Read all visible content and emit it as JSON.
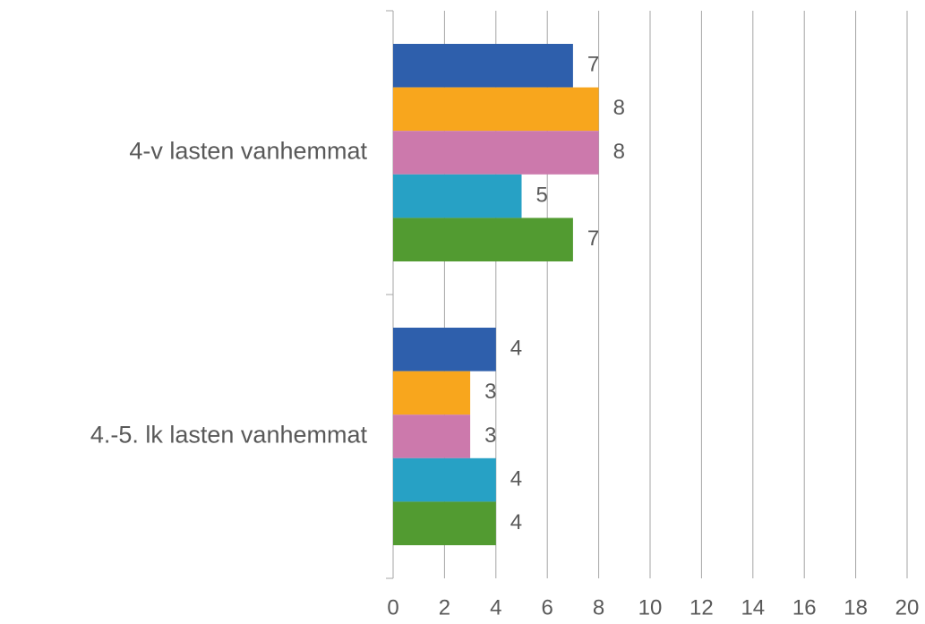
{
  "chart_data": {
    "type": "barh",
    "categories": [
      "4-v lasten vanhemmat",
      "4.-5. lk lasten vanhemmat"
    ],
    "series": [
      {
        "color": "#2e5fac",
        "values": [
          7,
          4
        ]
      },
      {
        "color": "#f8a61d",
        "values": [
          8,
          3
        ]
      },
      {
        "color": "#cc79ac",
        "values": [
          8,
          3
        ]
      },
      {
        "color": "#27a1c5",
        "values": [
          5,
          4
        ]
      },
      {
        "color": "#529b31",
        "values": [
          7,
          4
        ]
      }
    ],
    "xlim": [
      0,
      20
    ],
    "xticks": [
      0,
      2,
      4,
      6,
      8,
      10,
      12,
      14,
      16,
      18,
      20
    ],
    "grid": true
  }
}
